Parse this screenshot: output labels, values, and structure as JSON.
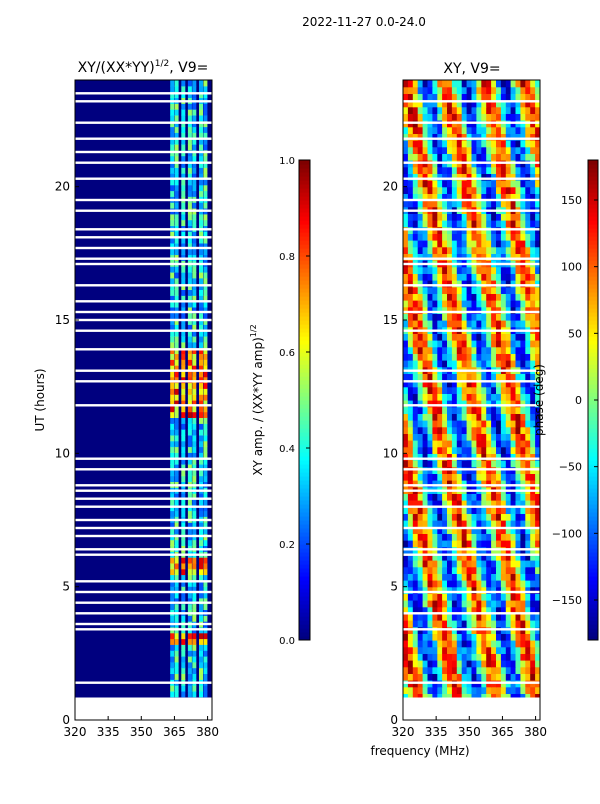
{
  "suptitle": "2022-11-27 0.0-24.0",
  "colors": {
    "jet": [
      "#00007f",
      "#0000ff",
      "#007fff",
      "#00ffff",
      "#7fff7f",
      "#ffff00",
      "#ff7f00",
      "#ff0000",
      "#7f0000"
    ],
    "background_dark": "#00007f",
    "gap": "#ffffff"
  },
  "chart_data": [
    {
      "type": "heatmap",
      "title": "XY/(XX*YY)",
      "title_superscript": "1/2",
      "title_suffix": ", V9=",
      "xlabel": "",
      "ylabel": "UT (hours)",
      "xlim": [
        320,
        382
      ],
      "ylim": [
        0,
        24
      ],
      "xticks": [
        320,
        335,
        350,
        365,
        380
      ],
      "yticks": [
        0,
        5,
        10,
        15,
        20
      ],
      "bright_channels_mhz": [
        364,
        366,
        369,
        372,
        374,
        377,
        379
      ],
      "hot_bands_hours": [
        [
          2.8,
          3.2
        ],
        [
          5.4,
          6.0
        ],
        [
          11.4,
          14.0
        ]
      ],
      "gaps_hours": [
        0.8,
        1.4,
        3.4,
        3.6,
        4.0,
        4.4,
        4.8,
        5.2,
        6.2,
        6.4,
        6.9,
        7.2,
        7.5,
        8.0,
        8.3,
        8.6,
        8.8,
        9.4,
        9.8,
        11.8,
        12.7,
        13.1,
        13.9,
        14.6,
        15.0,
        15.3,
        15.7,
        16.3,
        17.1,
        17.3,
        17.7,
        18.1,
        18.4,
        19.1,
        19.5,
        20.3,
        20.9,
        21.3,
        21.8,
        22.4,
        23.2,
        23.5
      ],
      "colorbar": {
        "label": "XY amp. / (XX*YY amp)",
        "label_superscript": "1/2",
        "range": [
          0.0,
          1.0
        ],
        "ticks": [
          "0.0",
          "0.2",
          "0.4",
          "0.6",
          "0.8",
          "1.0"
        ]
      }
    },
    {
      "type": "heatmap",
      "title": "XY, V9=",
      "xlabel": "frequency (MHz)",
      "ylabel": "",
      "xlim": [
        320,
        382
      ],
      "ylim": [
        0,
        24
      ],
      "xticks": [
        320,
        335,
        350,
        365,
        380
      ],
      "yticks": [
        0,
        5,
        10,
        15,
        20
      ],
      "gaps_hours": [
        0.8,
        1.4,
        3.4,
        4.0,
        4.8,
        6.2,
        6.4,
        7.2,
        8.0,
        8.6,
        8.8,
        9.4,
        9.8,
        11.8,
        12.7,
        13.1,
        14.6,
        15.3,
        16.3,
        17.1,
        17.3,
        18.4,
        19.1,
        19.5,
        20.3,
        20.9,
        21.8,
        22.4,
        23.2
      ],
      "colorbar": {
        "label": "phase (deg)",
        "range": [
          -180,
          180
        ],
        "ticks": [
          "150",
          "100",
          "50",
          "0",
          "−50",
          "−100",
          "−150"
        ],
        "tick_values": [
          150,
          100,
          50,
          0,
          -50,
          -100,
          -150
        ]
      }
    }
  ]
}
